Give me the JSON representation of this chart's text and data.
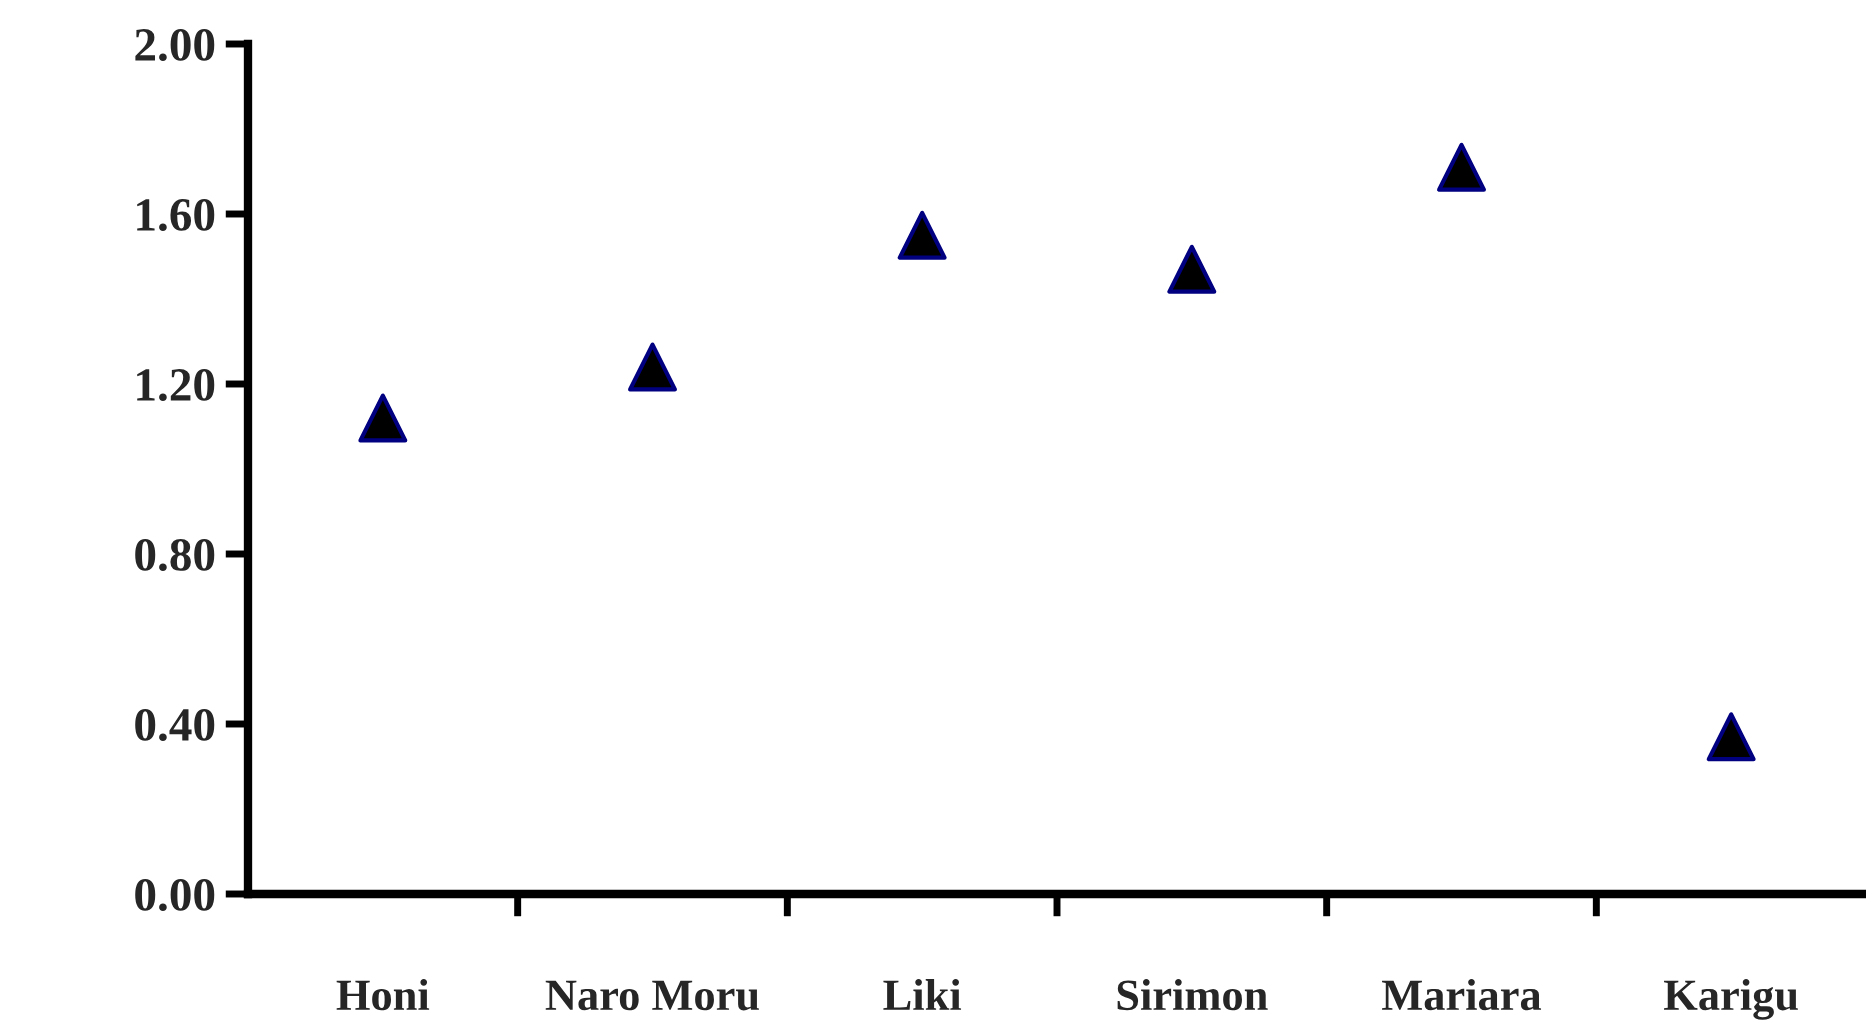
{
  "chart_data": {
    "type": "scatter",
    "categories": [
      "Honi",
      "Naro Moru",
      "Liki",
      "Sirimon",
      "Mariara",
      "Karigu"
    ],
    "series": [
      {
        "color": "#000000",
        "values": [
          1.12,
          1.24,
          1.55,
          1.47,
          1.71,
          0.37
        ]
      }
    ],
    "ylim": [
      0,
      2
    ],
    "yticks": [
      {
        "value": 0,
        "label": "0.00"
      },
      {
        "value": 0.4,
        "label": "0.40"
      },
      {
        "value": 0.8,
        "label": "0.80"
      },
      {
        "value": 1.2,
        "label": "1.20"
      },
      {
        "value": 1.6,
        "label": "1.60"
      },
      {
        "value": 2,
        "label": "2.00"
      }
    ],
    "marker": "triangle",
    "grid": false,
    "legend": false
  }
}
